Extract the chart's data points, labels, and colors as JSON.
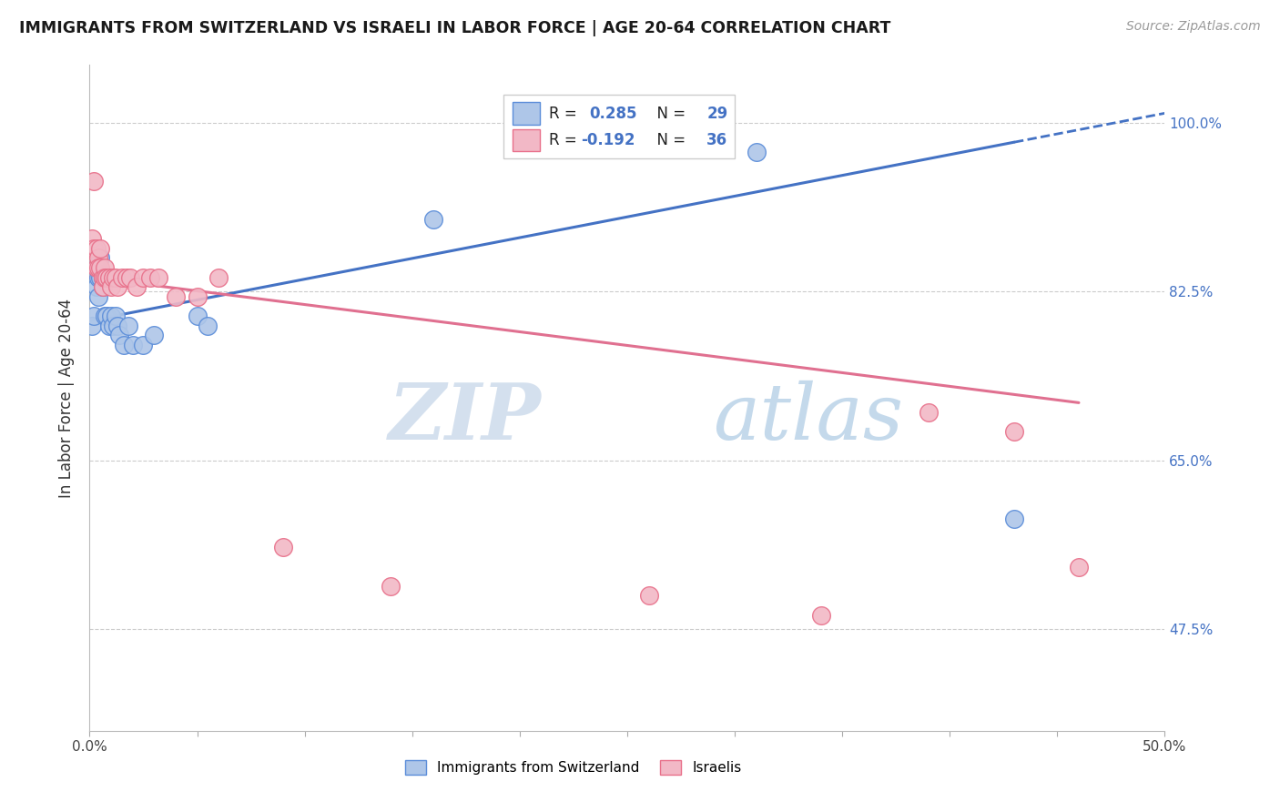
{
  "title": "IMMIGRANTS FROM SWITZERLAND VS ISRAELI IN LABOR FORCE | AGE 20-64 CORRELATION CHART",
  "source": "Source: ZipAtlas.com",
  "ylabel": "In Labor Force | Age 20-64",
  "xlim": [
    0.0,
    0.5
  ],
  "ylim": [
    0.37,
    1.06
  ],
  "yticks_right": [
    0.475,
    0.65,
    0.825,
    1.0
  ],
  "yticklabels_right": [
    "47.5%",
    "65.0%",
    "82.5%",
    "100.0%"
  ],
  "xtick_positions": [
    0.0,
    0.05,
    0.1,
    0.15,
    0.2,
    0.25,
    0.3,
    0.35,
    0.4,
    0.45,
    0.5
  ],
  "legend_R1": "0.285",
  "legend_N1": "29",
  "legend_R2": "-0.192",
  "legend_N2": "36",
  "watermark_zip": "ZIP",
  "watermark_atlas": "atlas",
  "color_swiss_fill": "#aec6e8",
  "color_swiss_edge": "#5b8dd9",
  "color_israeli_fill": "#f2b8c6",
  "color_israeli_edge": "#e8708a",
  "color_line_swiss": "#4472C4",
  "color_line_israeli": "#e07090",
  "swiss_x": [
    0.001,
    0.002,
    0.003,
    0.003,
    0.004,
    0.004,
    0.005,
    0.005,
    0.006,
    0.006,
    0.007,
    0.007,
    0.008,
    0.009,
    0.01,
    0.011,
    0.012,
    0.013,
    0.014,
    0.016,
    0.018,
    0.02,
    0.025,
    0.03,
    0.05,
    0.055,
    0.16,
    0.31,
    0.43
  ],
  "swiss_y": [
    0.79,
    0.8,
    0.83,
    0.85,
    0.82,
    0.84,
    0.84,
    0.86,
    0.83,
    0.84,
    0.84,
    0.8,
    0.8,
    0.79,
    0.8,
    0.79,
    0.8,
    0.79,
    0.78,
    0.77,
    0.79,
    0.77,
    0.77,
    0.78,
    0.8,
    0.79,
    0.9,
    0.97,
    0.59
  ],
  "israeli_x": [
    0.001,
    0.002,
    0.002,
    0.003,
    0.003,
    0.004,
    0.004,
    0.005,
    0.005,
    0.006,
    0.006,
    0.007,
    0.007,
    0.008,
    0.009,
    0.01,
    0.011,
    0.012,
    0.013,
    0.015,
    0.017,
    0.019,
    0.022,
    0.025,
    0.028,
    0.032,
    0.04,
    0.05,
    0.06,
    0.09,
    0.14,
    0.26,
    0.34,
    0.39,
    0.43,
    0.46
  ],
  "israeli_y": [
    0.88,
    0.94,
    0.87,
    0.87,
    0.85,
    0.86,
    0.85,
    0.87,
    0.85,
    0.84,
    0.83,
    0.85,
    0.84,
    0.84,
    0.84,
    0.83,
    0.84,
    0.84,
    0.83,
    0.84,
    0.84,
    0.84,
    0.83,
    0.84,
    0.84,
    0.84,
    0.82,
    0.82,
    0.84,
    0.56,
    0.52,
    0.51,
    0.49,
    0.7,
    0.68,
    0.54
  ],
  "blue_line_x0": 0.0,
  "blue_line_x1": 0.43,
  "blue_line_xd": 0.5,
  "blue_line_y0": 0.795,
  "blue_line_y1": 0.98,
  "blue_line_yd": 1.01,
  "pink_line_x0": 0.0,
  "pink_line_x1": 0.46,
  "pink_line_y0": 0.84,
  "pink_line_y1": 0.71
}
